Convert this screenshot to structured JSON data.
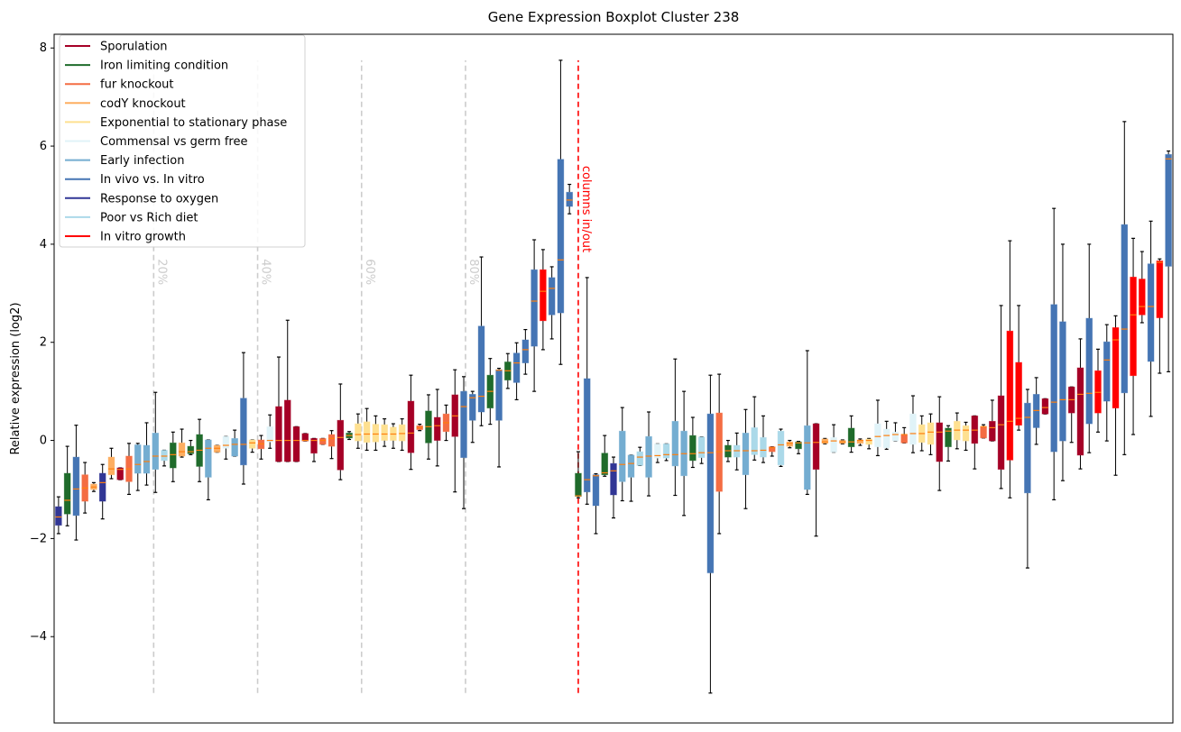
{
  "chart_data": {
    "type": "boxplot",
    "title": "Gene Expression Boxplot Cluster 238",
    "xlabel": "",
    "ylabel": "Relative expression (log2)",
    "xlim": [
      0.5,
      127.5
    ],
    "ylim": [
      -5.76,
      8.28
    ],
    "yticks": [
      -4,
      -2,
      0,
      2,
      4,
      6,
      8
    ],
    "xticks": [],
    "grid": false,
    "legend_position": "upper-left",
    "median_color": "#ff7f0e",
    "categories": [
      {
        "name": "Sporulation",
        "color": "#a50026"
      },
      {
        "name": "Iron limiting condition",
        "color": "#1f6b2b"
      },
      {
        "name": "fur knockout",
        "color": "#f46d43"
      },
      {
        "name": "codY knockout",
        "color": "#fdae61"
      },
      {
        "name": "Exponential to stationary phase",
        "color": "#fee090"
      },
      {
        "name": "Commensal vs germ free",
        "color": "#e0f3f8"
      },
      {
        "name": "Early infection",
        "color": "#74add1"
      },
      {
        "name": "In vivo vs. In vitro",
        "color": "#4575b4"
      },
      {
        "name": "Response to oxygen",
        "color": "#313695"
      },
      {
        "name": "Poor vs Rich diet",
        "color": "#abd9e9"
      },
      {
        "name": "In vitro growth",
        "color": "#ff0000"
      }
    ],
    "box_fields": [
      "category",
      "whislo",
      "q1",
      "median",
      "q3",
      "whishi"
    ],
    "boxes": [
      [
        8,
        -1.9,
        -1.73,
        -1.56,
        -1.35,
        -1.15
      ],
      [
        1,
        -1.74,
        -1.5,
        -1.22,
        -0.67,
        -0.12
      ],
      [
        7,
        -2.03,
        -1.53,
        -0.99,
        -0.34,
        0.31
      ],
      [
        2,
        -1.48,
        -1.24,
        -0.97,
        -0.7,
        -0.45
      ],
      [
        3,
        -1.04,
        -1.0,
        -0.95,
        -0.89,
        -0.86
      ],
      [
        8,
        -1.6,
        -1.24,
        -0.86,
        -0.67,
        -0.49
      ],
      [
        3,
        -0.78,
        -0.7,
        -0.58,
        -0.34,
        -0.16
      ],
      [
        0,
        -0.8,
        -0.8,
        -0.59,
        -0.56,
        -0.56
      ],
      [
        2,
        -1.1,
        -0.84,
        -0.58,
        -0.32,
        -0.06
      ],
      [
        6,
        -1.02,
        -0.67,
        -0.49,
        -0.09,
        -0.06
      ],
      [
        6,
        -0.91,
        -0.67,
        -0.43,
        -0.1,
        0.36
      ],
      [
        6,
        -1.06,
        -0.59,
        -0.32,
        0.15,
        0.98
      ],
      [
        9,
        -0.52,
        -0.41,
        -0.32,
        -0.2,
        -0.2
      ],
      [
        1,
        -0.84,
        -0.56,
        -0.29,
        -0.05,
        0.17
      ],
      [
        3,
        -0.34,
        -0.32,
        -0.23,
        -0.05,
        0.23
      ],
      [
        1,
        -0.29,
        -0.27,
        -0.23,
        -0.12,
        0.0
      ],
      [
        1,
        -0.84,
        -0.53,
        -0.2,
        0.12,
        0.43
      ],
      [
        6,
        -1.21,
        -0.75,
        -0.16,
        0.01,
        0.01
      ],
      [
        3,
        -0.24,
        -0.24,
        -0.16,
        -0.1,
        -0.1
      ],
      [
        5,
        -0.38,
        -0.16,
        -0.1,
        0.08,
        0.08
      ],
      [
        6,
        -0.32,
        -0.32,
        -0.08,
        0.04,
        0.21
      ],
      [
        7,
        -0.89,
        -0.5,
        -0.08,
        0.86,
        1.79
      ],
      [
        4,
        -0.24,
        -0.16,
        -0.05,
        0.01,
        0.01
      ],
      [
        2,
        -0.38,
        -0.17,
        -0.07,
        0.01,
        0.1
      ],
      [
        5,
        -0.16,
        -0.03,
        0.0,
        0.28,
        0.52
      ],
      [
        0,
        -0.43,
        -0.43,
        0,
        0.69,
        1.7
      ],
      [
        0,
        -0.43,
        -0.43,
        0,
        0.82,
        2.45
      ],
      [
        0,
        -0.43,
        -0.43,
        0,
        0.28,
        0.28
      ],
      [
        0,
        -0.01,
        -0.01,
        0,
        0.14,
        0.14
      ],
      [
        0,
        -0.43,
        -0.26,
        0,
        0.04,
        0.04
      ],
      [
        2,
        -0.08,
        -0.08,
        0,
        0.04,
        0.04
      ],
      [
        2,
        -0.37,
        -0.12,
        0.04,
        0.12,
        0.2
      ],
      [
        0,
        -0.8,
        -0.6,
        0.06,
        0.41,
        1.15
      ],
      [
        1,
        0.02,
        0.05,
        0.1,
        0.15,
        0.18
      ],
      [
        4,
        -0.16,
        -0.01,
        0.12,
        0.34,
        0.54
      ],
      [
        4,
        -0.2,
        -0.04,
        0.13,
        0.38,
        0.65
      ],
      [
        4,
        -0.2,
        -0.03,
        0.13,
        0.33,
        0.5
      ],
      [
        4,
        -0.12,
        0.0,
        0.13,
        0.32,
        0.44
      ],
      [
        4,
        -0.16,
        0.0,
        0.13,
        0.27,
        0.34
      ],
      [
        4,
        -0.2,
        -0.01,
        0.14,
        0.32,
        0.44
      ],
      [
        0,
        -0.59,
        -0.25,
        0.15,
        0.8,
        1.33
      ],
      [
        2,
        0.2,
        0.22,
        0.26,
        0.3,
        0.33
      ],
      [
        1,
        -0.38,
        -0.05,
        0.28,
        0.6,
        0.93
      ],
      [
        0,
        -0.52,
        0.0,
        0.3,
        0.47,
        1.04
      ],
      [
        2,
        0.0,
        0.18,
        0.36,
        0.54,
        0.72
      ],
      [
        0,
        -1.05,
        0.08,
        0.5,
        0.93,
        1.44
      ],
      [
        7,
        -1.39,
        -0.35,
        0.69,
        1.0,
        1.3
      ],
      [
        7,
        -0.04,
        0.41,
        0.87,
        0.94,
        1.0
      ],
      [
        7,
        0.3,
        0.58,
        0.9,
        2.33,
        3.74
      ],
      [
        1,
        0.33,
        0.66,
        1.0,
        1.33,
        1.67
      ],
      [
        7,
        -0.54,
        0.41,
        1.43,
        1.44,
        1.47
      ],
      [
        1,
        1.06,
        1.23,
        1.42,
        1.6,
        1.77
      ],
      [
        7,
        0.83,
        1.18,
        1.58,
        1.78,
        1.99
      ],
      [
        7,
        1.35,
        1.58,
        1.85,
        2.05,
        2.26
      ],
      [
        7,
        1.0,
        1.92,
        2.84,
        3.48,
        4.09
      ],
      [
        10,
        1.85,
        2.44,
        3.04,
        3.48,
        3.89
      ],
      [
        7,
        2.07,
        2.56,
        3.1,
        3.32,
        3.54
      ],
      [
        7,
        1.55,
        2.6,
        3.68,
        5.73,
        7.75
      ],
      [
        7,
        4.62,
        4.77,
        4.9,
        5.06,
        5.22
      ],
      [
        1,
        -1.17,
        -1.14,
        -1.13,
        -0.67,
        -0.23
      ],
      [
        7,
        -1.3,
        -1.05,
        -0.8,
        1.26,
        3.32
      ],
      [
        7,
        -1.9,
        -1.33,
        -0.72,
        -0.7,
        -0.68
      ],
      [
        1,
        -0.73,
        -0.7,
        -0.66,
        -0.26,
        0.1
      ],
      [
        8,
        -1.58,
        -1.11,
        -0.62,
        -0.47,
        -0.34
      ],
      [
        6,
        -1.23,
        -0.84,
        -0.49,
        0.19,
        0.67
      ],
      [
        6,
        -1.24,
        -0.75,
        -0.47,
        -0.3,
        -0.3
      ],
      [
        9,
        -0.51,
        -0.51,
        -0.34,
        -0.23,
        -0.14
      ],
      [
        6,
        -1.13,
        -0.75,
        -0.32,
        0.08,
        0.58
      ],
      [
        5,
        -0.45,
        -0.36,
        -0.31,
        -0.07,
        -0.07
      ],
      [
        9,
        -0.41,
        -0.36,
        -0.29,
        -0.07,
        -0.07
      ],
      [
        6,
        -1.12,
        -0.52,
        -0.29,
        0.39,
        1.66
      ],
      [
        6,
        -1.53,
        -0.72,
        -0.27,
        0.19,
        1.0
      ],
      [
        1,
        -0.55,
        -0.41,
        -0.27,
        0.1,
        0.47
      ],
      [
        9,
        -0.47,
        -0.35,
        -0.25,
        0.07,
        0.07
      ],
      [
        7,
        -5.15,
        -2.7,
        -0.25,
        0.54,
        1.33
      ],
      [
        2,
        -1.9,
        -1.04,
        -0.23,
        0.56,
        1.35
      ],
      [
        1,
        -0.43,
        -0.34,
        -0.21,
        -0.1,
        0.0
      ],
      [
        9,
        -0.6,
        -0.34,
        -0.21,
        -0.1,
        0.15
      ],
      [
        6,
        -1.39,
        -0.7,
        -0.21,
        0.15,
        0.63
      ],
      [
        9,
        -0.4,
        -0.29,
        -0.21,
        0.26,
        0.89
      ],
      [
        9,
        -0.45,
        -0.34,
        -0.2,
        0.06,
        0.5
      ],
      [
        2,
        -0.32,
        -0.23,
        -0.15,
        -0.13,
        -0.13
      ],
      [
        9,
        -0.53,
        -0.5,
        -0.09,
        0.19,
        0.23
      ],
      [
        3,
        -0.15,
        -0.12,
        -0.06,
        -0.03,
        0.0
      ],
      [
        1,
        -0.27,
        -0.17,
        -0.05,
        -0.03,
        -0.02
      ],
      [
        6,
        -1.1,
        -1.0,
        -0.05,
        0.3,
        1.83
      ],
      [
        0,
        -1.95,
        -0.59,
        -0.04,
        0.34,
        0.34
      ],
      [
        3,
        -0.07,
        -0.06,
        -0.03,
        0.03,
        0.04
      ],
      [
        5,
        -0.24,
        -0.24,
        -0.01,
        0.06,
        0.32
      ],
      [
        3,
        -0.07,
        -0.06,
        -0.03,
        0.0,
        0.01
      ],
      [
        1,
        -0.24,
        -0.13,
        -0.03,
        0.25,
        0.5
      ],
      [
        3,
        -0.1,
        -0.06,
        0.0,
        0.01,
        0.03
      ],
      [
        4,
        -0.17,
        -0.08,
        0.0,
        0.03,
        0.04
      ],
      [
        5,
        -0.31,
        -0.13,
        0.08,
        0.34,
        0.82
      ],
      [
        5,
        -0.18,
        -0.15,
        0.1,
        0.23,
        0.39
      ],
      [
        5,
        -0.01,
        -0.01,
        0.12,
        0.17,
        0.36
      ],
      [
        2,
        -0.05,
        -0.05,
        0.12,
        0.12,
        0.26
      ],
      [
        5,
        -0.25,
        -0.08,
        0.14,
        0.54,
        0.91
      ],
      [
        4,
        -0.21,
        -0.04,
        0.14,
        0.32,
        0.5
      ],
      [
        4,
        -0.29,
        -0.08,
        0.17,
        0.36,
        0.54
      ],
      [
        0,
        -1.02,
        -0.43,
        0.17,
        0.36,
        0.89
      ],
      [
        1,
        -0.42,
        -0.13,
        0.19,
        0.25,
        0.3
      ],
      [
        4,
        -0.17,
        0.01,
        0.21,
        0.39,
        0.56
      ],
      [
        4,
        -0.2,
        -0.01,
        0.21,
        0.3,
        0.37
      ],
      [
        0,
        -0.58,
        -0.06,
        0.21,
        0.5,
        0.5
      ],
      [
        2,
        0.05,
        0.05,
        0.28,
        0.28,
        0.32
      ],
      [
        0,
        -0.01,
        -0.01,
        0.26,
        0.39,
        0.82
      ],
      [
        0,
        -0.98,
        -0.59,
        0.32,
        0.91,
        2.75
      ],
      [
        10,
        -1.17,
        -0.4,
        0.39,
        2.23,
        4.07
      ],
      [
        10,
        0.21,
        0.31,
        0.45,
        1.59,
        2.75
      ],
      [
        7,
        -2.6,
        -1.07,
        0.47,
        0.76,
        1.04
      ],
      [
        7,
        -0.08,
        0.26,
        0.61,
        0.94,
        1.28
      ],
      [
        0,
        0.54,
        0.54,
        0.67,
        0.85,
        0.85
      ],
      [
        7,
        -1.21,
        -0.23,
        0.78,
        2.77,
        4.73
      ],
      [
        7,
        -0.82,
        -0.01,
        0.83,
        2.42,
        4.0
      ],
      [
        0,
        -0.04,
        0.56,
        0.83,
        1.09,
        1.09
      ],
      [
        0,
        -0.58,
        -0.3,
        0.94,
        1.48,
        2.07
      ],
      [
        7,
        -0.25,
        0.34,
        0.96,
        2.49,
        4.0
      ],
      [
        10,
        0.17,
        0.56,
        0.98,
        1.42,
        1.86
      ],
      [
        7,
        -0.01,
        0.8,
        1.64,
        2.01,
        2.36
      ],
      [
        10,
        -0.71,
        0.66,
        2.05,
        2.3,
        2.54
      ],
      [
        7,
        -0.29,
        0.97,
        2.27,
        4.4,
        6.5
      ],
      [
        10,
        0.12,
        1.32,
        2.56,
        3.33,
        4.12
      ],
      [
        10,
        2.4,
        2.56,
        2.73,
        3.29,
        3.85
      ],
      [
        7,
        0.49,
        1.61,
        2.73,
        3.6,
        4.47
      ],
      [
        10,
        1.37,
        2.5,
        3.63,
        3.66,
        3.7
      ],
      [
        7,
        1.4,
        3.55,
        5.74,
        5.83,
        5.9
      ]
    ],
    "annotations": {
      "percent_lines": [
        {
          "x": 11.8,
          "label": "20%"
        },
        {
          "x": 23.6,
          "label": "40%"
        },
        {
          "x": 35.4,
          "label": "60%"
        },
        {
          "x": 47.2,
          "label": "80%"
        }
      ],
      "percent_line_color": "#cccccc",
      "line_yrange": [
        -5.15,
        7.75
      ],
      "split_line": {
        "x": 60,
        "label": "columns in/out",
        "color": "#ff0000"
      }
    }
  }
}
